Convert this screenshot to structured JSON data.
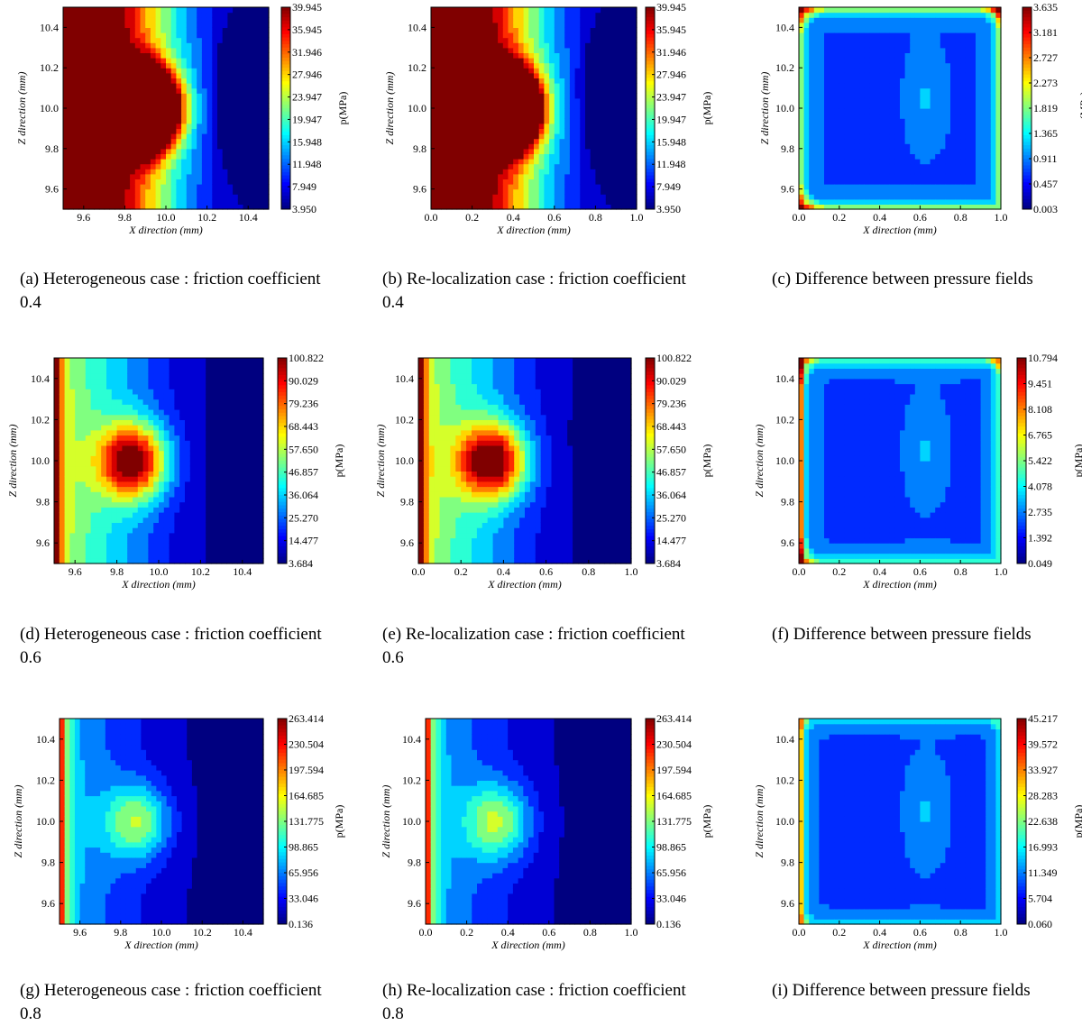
{
  "figure": {
    "chart_data": [
      {
        "id": "a",
        "type": "heatmap",
        "field": "hetero",
        "nlev": 6,
        "xlabel": "X direction (mm)",
        "ylabel": "Z direction (mm)",
        "cbar_label": "p(MPa)",
        "xlim": [
          9.5,
          10.5
        ],
        "ylim": [
          9.5,
          10.5
        ],
        "xticks": [
          "9.6",
          "9.8",
          "10.0",
          "10.2",
          "10.4"
        ],
        "yticks": [
          "9.6",
          "9.8",
          "10.0",
          "10.2",
          "10.4"
        ],
        "cbar_ticks": [
          "39.945",
          "35.945",
          "31.946",
          "27.946",
          "23.947",
          "19.947",
          "15.948",
          "11.948",
          "7.949",
          "3.950"
        ],
        "vmin": 3.95,
        "vmax": 39.945,
        "caption": [
          "(a) Heterogeneous case : friction coefficient",
          "0.4"
        ]
      },
      {
        "id": "b",
        "type": "heatmap",
        "field": "reloc",
        "nlev": 6,
        "xlabel": "X direction (mm)",
        "ylabel": "Z direction (mm)",
        "cbar_label": "p(MPa)",
        "xlim": [
          0,
          1
        ],
        "ylim": [
          9.5,
          10.5
        ],
        "xticks": [
          "0.0",
          "0.2",
          "0.4",
          "0.6",
          "0.8",
          "1.0"
        ],
        "yticks": [
          "9.6",
          "9.8",
          "10.0",
          "10.2",
          "10.4"
        ],
        "cbar_ticks": [
          "39.945",
          "35.945",
          "31.946",
          "27.946",
          "23.947",
          "19.947",
          "15.948",
          "11.948",
          "7.949",
          "3.950"
        ],
        "vmin": 3.95,
        "vmax": 39.945,
        "caption": [
          "(b) Re-localization case : friction coefficient",
          "0.4"
        ]
      },
      {
        "id": "c",
        "type": "heatmap",
        "field": "diff",
        "nlev": 1,
        "xlabel": "X direction (mm)",
        "ylabel": "Z direction (mm)",
        "cbar_label": "p(MPa)",
        "xlim": [
          0,
          1
        ],
        "ylim": [
          9.5,
          10.5
        ],
        "xticks": [
          "0.0",
          "0.2",
          "0.4",
          "0.6",
          "0.8",
          "1.0"
        ],
        "yticks": [
          "9.6",
          "9.8",
          "10.0",
          "10.2",
          "10.4"
        ],
        "cbar_ticks": [
          "3.635",
          "3.181",
          "2.727",
          "2.273",
          "1.819",
          "1.365",
          "0.911",
          "0.457",
          "0.003"
        ],
        "vmin": 0.003,
        "vmax": 3.635,
        "caption": [
          "(c) Difference between pressure fields"
        ]
      },
      {
        "id": "d",
        "type": "heatmap",
        "field": "hetero",
        "nlev": 2,
        "xlabel": "X direction (mm)",
        "ylabel": "Z direction (mm)",
        "cbar_label": "p(MPa)",
        "xlim": [
          9.5,
          10.5
        ],
        "ylim": [
          9.5,
          10.5
        ],
        "xticks": [
          "9.6",
          "9.8",
          "10.0",
          "10.2",
          "10.4"
        ],
        "yticks": [
          "9.6",
          "9.8",
          "10.0",
          "10.2",
          "10.4"
        ],
        "cbar_ticks": [
          "100.822",
          "90.029",
          "79.236",
          "68.443",
          "57.650",
          "46.857",
          "36.064",
          "25.270",
          "14.477",
          "3.684"
        ],
        "vmin": 3.684,
        "vmax": 100.822,
        "caption": [
          "(d) Heterogeneous case : friction coefficient",
          "0.6"
        ]
      },
      {
        "id": "e",
        "type": "heatmap",
        "field": "reloc",
        "nlev": 2,
        "xlabel": "X direction (mm)",
        "ylabel": "Z direction (mm)",
        "cbar_label": "p(MPa)",
        "xlim": [
          0,
          1
        ],
        "ylim": [
          9.5,
          10.5
        ],
        "xticks": [
          "0.0",
          "0.2",
          "0.4",
          "0.6",
          "0.8",
          "1.0"
        ],
        "yticks": [
          "9.6",
          "9.8",
          "10.0",
          "10.2",
          "10.4"
        ],
        "cbar_ticks": [
          "100.822",
          "90.029",
          "79.236",
          "68.443",
          "57.650",
          "46.857",
          "36.064",
          "25.270",
          "14.477",
          "3.684"
        ],
        "vmin": 3.684,
        "vmax": 100.822,
        "caption": [
          "(e) Re-localization case : friction coefficient",
          "0.6"
        ]
      },
      {
        "id": "f",
        "type": "heatmap",
        "field": "diff",
        "nlev": 0.7,
        "xlabel": "X direction (mm)",
        "ylabel": "Z direction (mm)",
        "cbar_label": "p(MPa)",
        "xlim": [
          0,
          1
        ],
        "ylim": [
          9.5,
          10.5
        ],
        "xticks": [
          "0.0",
          "0.2",
          "0.4",
          "0.6",
          "0.8",
          "1.0"
        ],
        "yticks": [
          "9.6",
          "9.8",
          "10.0",
          "10.2",
          "10.4"
        ],
        "cbar_ticks": [
          "10.794",
          "9.451",
          "8.108",
          "6.765",
          "5.422",
          "4.078",
          "2.735",
          "1.392",
          "0.049"
        ],
        "vmin": 0.049,
        "vmax": 10.794,
        "caption": [
          "(f) Difference between pressure fields"
        ]
      },
      {
        "id": "g",
        "type": "heatmap",
        "field": "hetero",
        "nlev": 1,
        "xlabel": "X direction (mm)",
        "ylabel": "Z direction (mm)",
        "cbar_label": "p(MPa)",
        "xlim": [
          9.5,
          10.5
        ],
        "ylim": [
          9.5,
          10.5
        ],
        "xticks": [
          "9.6",
          "9.8",
          "10.0",
          "10.2",
          "10.4"
        ],
        "yticks": [
          "9.6",
          "9.8",
          "10.0",
          "10.2",
          "10.4"
        ],
        "cbar_ticks": [
          "263.414",
          "230.504",
          "197.594",
          "164.685",
          "131.775",
          "98.865",
          "65.956",
          "33.046",
          "0.136"
        ],
        "vmin": 0.136,
        "vmax": 263.414,
        "caption": [
          "(g) Heterogeneous case : friction coefficient",
          "0.8"
        ]
      },
      {
        "id": "h",
        "type": "heatmap",
        "field": "reloc",
        "nlev": 1,
        "xlabel": "X direction (mm)",
        "ylabel": "Z direction (mm)",
        "cbar_label": "p(MPa)",
        "xlim": [
          0,
          1
        ],
        "ylim": [
          9.5,
          10.5
        ],
        "xticks": [
          "0.0",
          "0.2",
          "0.4",
          "0.6",
          "0.8",
          "1.0"
        ],
        "yticks": [
          "9.6",
          "9.8",
          "10.0",
          "10.2",
          "10.4"
        ],
        "cbar_ticks": [
          "263.414",
          "230.504",
          "197.594",
          "164.685",
          "131.775",
          "98.865",
          "65.956",
          "33.046",
          "0.136"
        ],
        "vmin": 0.136,
        "vmax": 263.414,
        "caption": [
          "(h) Re-localization case : friction coefficient",
          "0.8"
        ]
      },
      {
        "id": "i",
        "type": "heatmap",
        "field": "diff",
        "nlev": 0.3,
        "xlabel": "X direction (mm)",
        "ylabel": "Z direction (mm)",
        "cbar_label": "p(MPa)",
        "xlim": [
          0,
          1
        ],
        "ylim": [
          9.5,
          10.5
        ],
        "xticks": [
          "0.0",
          "0.2",
          "0.4",
          "0.6",
          "0.8",
          "1.0"
        ],
        "yticks": [
          "9.6",
          "9.8",
          "10.0",
          "10.2",
          "10.4"
        ],
        "cbar_ticks": [
          "45.217",
          "39.572",
          "33.927",
          "28.283",
          "22.638",
          "16.993",
          "11.349",
          "5.704",
          "0.060"
        ],
        "vmin": 0.06,
        "vmax": 45.217,
        "caption": [
          "(i) Difference between pressure fields"
        ]
      }
    ]
  }
}
